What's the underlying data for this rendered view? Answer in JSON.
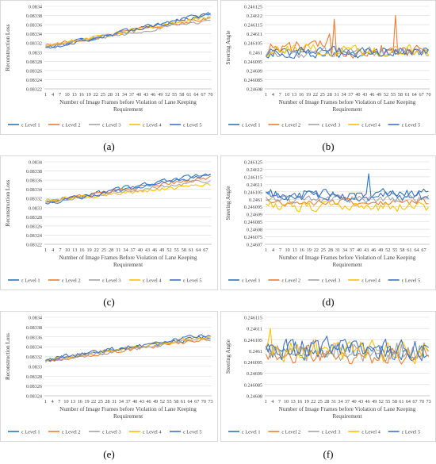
{
  "colors": {
    "series": [
      "#2E75B6",
      "#ED7D31",
      "#A5A5A5",
      "#FFC000",
      "#4472C4"
    ],
    "grid": "#d9d9d9",
    "axis": "#bfbfbf",
    "frame": "#d9d9d9",
    "text": "#404040"
  },
  "chart_data": [
    {
      "panel_label": "(a)",
      "type": "line",
      "ylabel": "Reconstruction Loss",
      "xlabel_line1": "Number of Image Frames before Violation of Lane Keeping",
      "xlabel_line2": "Requirement",
      "ylim": [
        0.08322,
        0.0834
      ],
      "yticks": [
        "0.08322",
        "0.08324",
        "0.08326",
        "0.08328",
        "0.0833",
        "0.08332",
        "0.08334",
        "0.08336",
        "0.08338",
        "0.0834"
      ],
      "xticks": [
        "1",
        "4",
        "7",
        "10",
        "13",
        "16",
        "19",
        "22",
        "25",
        "28",
        "31",
        "34",
        "37",
        "40",
        "43",
        "46",
        "49",
        "52",
        "55",
        "58",
        "61",
        "64",
        "67",
        "70"
      ],
      "xcount": 70,
      "grid": true,
      "legend": "bottom",
      "series": [
        {
          "name": "ε Level 1",
          "start": 0.08331,
          "end": 0.083383,
          "noise": 4.5e-06,
          "spikes": []
        },
        {
          "name": "ε Level 2",
          "start": 0.083315,
          "end": 0.083375,
          "noise": 4e-06,
          "spikes": []
        },
        {
          "name": "ε Level 3",
          "start": 0.083312,
          "end": 0.08337,
          "noise": 3.5e-06,
          "spikes": []
        },
        {
          "name": "ε Level 4",
          "start": 0.083313,
          "end": 0.083378,
          "noise": 4e-06,
          "spikes": []
        },
        {
          "name": "ε Level 5",
          "start": 0.083308,
          "end": 0.083385,
          "noise": 4.5e-06,
          "spikes": []
        }
      ]
    },
    {
      "panel_label": "(b)",
      "type": "line",
      "ylabel": "Steering Angle",
      "xlabel_line1": "Number of Image Frames before Violation of Lane Keeping",
      "xlabel_line2": "Requirement",
      "ylim": [
        0.24608,
        0.246125
      ],
      "yticks": [
        "0.24608",
        "0.246085",
        "0.24609",
        "0.246095",
        "0.2461",
        "0.246105",
        "0.24611",
        "0.246115",
        "0.24612",
        "0.246125"
      ],
      "xticks": [
        "1",
        "4",
        "7",
        "10",
        "13",
        "16",
        "19",
        "22",
        "25",
        "28",
        "31",
        "34",
        "37",
        "40",
        "43",
        "46",
        "49",
        "52",
        "55",
        "58",
        "61",
        "64",
        "67",
        "70"
      ],
      "xcount": 70,
      "grid": true,
      "legend": "bottom",
      "series": [
        {
          "name": "ε Level 1",
          "start": 0.2461,
          "end": 0.2461,
          "noise": 2.5e-06,
          "spikes": []
        },
        {
          "name": "ε Level 2",
          "start": 0.246102,
          "end": 0.246102,
          "noise": 4e-06,
          "spikes": [
            [
              30,
              0.246118
            ],
            [
              56,
              0.24612
            ],
            [
              28,
              0.24611
            ]
          ]
        },
        {
          "name": "ε Level 3",
          "start": 0.2461,
          "end": 0.2461,
          "noise": 2.5e-06,
          "spikes": []
        },
        {
          "name": "ε Level 4",
          "start": 0.246101,
          "end": 0.246101,
          "noise": 3e-06,
          "spikes": []
        },
        {
          "name": "ε Level 5",
          "start": 0.2461,
          "end": 0.2461,
          "noise": 2.5e-06,
          "spikes": []
        }
      ]
    },
    {
      "panel_label": "(c)",
      "type": "line",
      "ylabel": "Reconstruction Loss",
      "xlabel_line1": "Number of Image Frames Before Violation of Lane Keeping",
      "xlabel_line2": "Requirement",
      "ylim": [
        0.08322,
        0.0834
      ],
      "yticks": [
        "0.08322",
        "0.08324",
        "0.08326",
        "0.08328",
        "0.0833",
        "0.08332",
        "0.08334",
        "0.08336",
        "0.08338",
        "0.0834"
      ],
      "xticks": [
        "1",
        "4",
        "7",
        "10",
        "13",
        "16",
        "19",
        "22",
        "25",
        "28",
        "31",
        "34",
        "37",
        "40",
        "43",
        "46",
        "49",
        "52",
        "55",
        "58",
        "61",
        "64",
        "67"
      ],
      "xcount": 69,
      "grid": true,
      "legend": "bottom",
      "series": [
        {
          "name": "ε Level 1",
          "start": 0.083312,
          "end": 0.083375,
          "noise": 4.5e-06,
          "spikes": []
        },
        {
          "name": "ε Level 2",
          "start": 0.083314,
          "end": 0.083365,
          "noise": 4e-06,
          "spikes": []
        },
        {
          "name": "ε Level 3",
          "start": 0.083312,
          "end": 0.08336,
          "noise": 3.5e-06,
          "spikes": []
        },
        {
          "name": "ε Level 4",
          "start": 0.083316,
          "end": 0.08335,
          "noise": 4e-06,
          "spikes": []
        },
        {
          "name": "ε Level 5",
          "start": 0.08331,
          "end": 0.083372,
          "noise": 4.5e-06,
          "spikes": []
        }
      ]
    },
    {
      "panel_label": "(d)",
      "type": "line",
      "ylabel": "Steering Angle",
      "xlabel_line1": "Number of Image Frames before Violation of Lane Keeping",
      "xlabel_line2": "Requirement",
      "ylim": [
        0.24607,
        0.246125
      ],
      "yticks": [
        "0.24607",
        "0.246075",
        "0.24608",
        "0.246085",
        "0.24609",
        "0.246095",
        "0.2461",
        "0.246105",
        "0.24611",
        "0.246115",
        "0.24612",
        "0.246125"
      ],
      "xticks": [
        "1",
        "4",
        "7",
        "10",
        "13",
        "16",
        "19",
        "22",
        "25",
        "28",
        "31",
        "34",
        "37",
        "40",
        "43",
        "46",
        "49",
        "52",
        "55",
        "58",
        "61",
        "64",
        "67"
      ],
      "xcount": 69,
      "grid": true,
      "legend": "bottom",
      "series": [
        {
          "name": "ε Level 1",
          "start": 0.246103,
          "end": 0.246103,
          "noise": 3.5e-06,
          "spikes": [
            [
              44,
              0.246117
            ]
          ]
        },
        {
          "name": "ε Level 2",
          "start": 0.246098,
          "end": 0.246098,
          "noise": 2e-06,
          "spikes": []
        },
        {
          "name": "ε Level 3",
          "start": 0.2461,
          "end": 0.2461,
          "noise": 2.5e-06,
          "spikes": []
        },
        {
          "name": "ε Level 4",
          "start": 0.246095,
          "end": 0.246095,
          "noise": 3e-06,
          "spikes": []
        },
        {
          "name": "ε Level 5",
          "start": 0.246102,
          "end": 0.246102,
          "noise": 3e-06,
          "spikes": []
        }
      ]
    },
    {
      "panel_label": "(e)",
      "type": "line",
      "ylabel": "Reconstruction Loss",
      "xlabel_line1": "Number of Image Frames before Violation of Lane Keeping",
      "xlabel_line2": "Requirement",
      "ylim": [
        0.08324,
        0.0834
      ],
      "yticks": [
        "0.08324",
        "0.08326",
        "0.08328",
        "0.0833",
        "0.08332",
        "0.08334",
        "0.08336",
        "0.08338",
        "0.0834"
      ],
      "xticks": [
        "1",
        "4",
        "7",
        "10",
        "13",
        "16",
        "19",
        "22",
        "25",
        "28",
        "31",
        "34",
        "37",
        "40",
        "43",
        "46",
        "49",
        "52",
        "55",
        "58",
        "61",
        "64",
        "67",
        "70",
        "73"
      ],
      "xcount": 73,
      "grid": true,
      "legend": "bottom",
      "series": [
        {
          "name": "ε Level 1",
          "start": 0.083315,
          "end": 0.08336,
          "noise": 4e-06,
          "spikes": []
        },
        {
          "name": "ε Level 2",
          "start": 0.083312,
          "end": 0.083355,
          "noise": 3.5e-06,
          "spikes": []
        },
        {
          "name": "ε Level 3",
          "start": 0.08331,
          "end": 0.083358,
          "noise": 3e-06,
          "spikes": []
        },
        {
          "name": "ε Level 4",
          "start": 0.083313,
          "end": 0.083362,
          "noise": 3.5e-06,
          "spikes": []
        },
        {
          "name": "ε Level 5",
          "start": 0.083314,
          "end": 0.083365,
          "noise": 4.5e-06,
          "spikes": []
        }
      ]
    },
    {
      "panel_label": "(f)",
      "type": "line",
      "ylabel": "Steering Angle",
      "xlabel_line1": "Number of Image Frames before Violation of Lane Keeping",
      "xlabel_line2": "Requirement",
      "ylim": [
        0.24608,
        0.246115
      ],
      "yticks": [
        "0.24608",
        "0.246085",
        "0.24609",
        "0.246095",
        "0.2461",
        "0.246105",
        "0.24611",
        "0.246115"
      ],
      "xticks": [
        "1",
        "4",
        "7",
        "10",
        "13",
        "16",
        "19",
        "22",
        "25",
        "28",
        "31",
        "34",
        "37",
        "40",
        "43",
        "46",
        "49",
        "52",
        "55",
        "58",
        "61",
        "64",
        "67",
        "70",
        "73"
      ],
      "xcount": 73,
      "grid": true,
      "legend": "bottom",
      "series": [
        {
          "name": "ε Level 1",
          "start": 0.2461,
          "end": 0.2461,
          "noise": 4e-06,
          "spikes": []
        },
        {
          "name": "ε Level 2",
          "start": 0.246098,
          "end": 0.246098,
          "noise": 3.5e-06,
          "spikes": []
        },
        {
          "name": "ε Level 3",
          "start": 0.2461,
          "end": 0.2461,
          "noise": 4e-06,
          "spikes": []
        },
        {
          "name": "ε Level 4",
          "start": 0.2461,
          "end": 0.2461,
          "noise": 4.5e-06,
          "spikes": [
            [
              3,
              0.24611
            ]
          ]
        },
        {
          "name": "ε Level 5",
          "start": 0.246101,
          "end": 0.246101,
          "noise": 4.5e-06,
          "spikes": []
        }
      ]
    }
  ]
}
